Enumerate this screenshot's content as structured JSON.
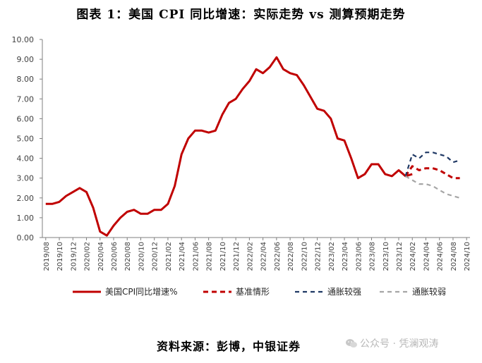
{
  "chart_data": {
    "type": "line",
    "title": "图表 1：美国 CPI 同比增速：实际走势 vs 测算预期走势",
    "xlabel": "",
    "ylabel": "",
    "ylim": [
      0,
      10
    ],
    "yticks": [
      "0.00",
      "1.00",
      "2.00",
      "3.00",
      "4.00",
      "5.00",
      "6.00",
      "7.00",
      "8.00",
      "9.00",
      "10.00"
    ],
    "x_tick_labels": [
      "2019/08",
      "2019/10",
      "2019/12",
      "2020/02",
      "2020/04",
      "2020/06",
      "2020/08",
      "2020/10",
      "2020/12",
      "2021/02",
      "2021/04",
      "2021/06",
      "2021/08",
      "2021/10",
      "2021/12",
      "2022/02",
      "2022/04",
      "2022/06",
      "2022/08",
      "2022/10",
      "2022/12",
      "2023/02",
      "2023/04",
      "2023/06",
      "2023/08",
      "2023/10",
      "2023/12",
      "2024/02",
      "2024/04",
      "2024/06",
      "2024/08",
      "2024/10"
    ],
    "x_month_start": "2019/08",
    "grid": false,
    "legend_position": "bottom",
    "series": [
      {
        "name": "美国CPI同比增速%",
        "color": "#c00000",
        "dash": "solid",
        "start": "2019/08",
        "values": [
          1.7,
          1.7,
          1.8,
          2.1,
          2.3,
          2.5,
          2.3,
          1.5,
          0.3,
          0.1,
          0.6,
          1.0,
          1.3,
          1.4,
          1.2,
          1.2,
          1.4,
          1.4,
          1.7,
          2.6,
          4.2,
          5.0,
          5.4,
          5.4,
          5.3,
          5.4,
          6.2,
          6.8,
          7.0,
          7.5,
          7.9,
          8.5,
          8.3,
          8.6,
          9.1,
          8.5,
          8.3,
          8.2,
          7.7,
          7.1,
          6.5,
          6.4,
          6.0,
          5.0,
          4.9,
          4.0,
          3.0,
          3.2,
          3.7,
          3.7,
          3.2,
          3.1,
          3.4,
          3.1,
          3.2
        ]
      },
      {
        "name": "基准情形",
        "color": "#c00000",
        "dash": "dashed",
        "start": "2024/01",
        "values": [
          3.1,
          3.6,
          3.4,
          3.5,
          3.5,
          3.4,
          3.2,
          3.0,
          3.0
        ]
      },
      {
        "name": "通胀较强",
        "color": "#1f3864",
        "dash": "dashed",
        "start": "2024/01",
        "values": [
          3.1,
          4.2,
          4.0,
          4.3,
          4.3,
          4.2,
          4.1,
          3.8,
          3.9
        ]
      },
      {
        "name": "通胀较弱",
        "color": "#a6a6a6",
        "dash": "dashed",
        "start": "2024/01",
        "values": [
          3.1,
          2.9,
          2.7,
          2.7,
          2.6,
          2.4,
          2.2,
          2.1,
          2.0
        ]
      }
    ]
  },
  "source_note": "资料来源：彭博，中银证券",
  "watermark": {
    "text": "公众号 · 凭澜观涛",
    "icon": "wechat-icon"
  }
}
